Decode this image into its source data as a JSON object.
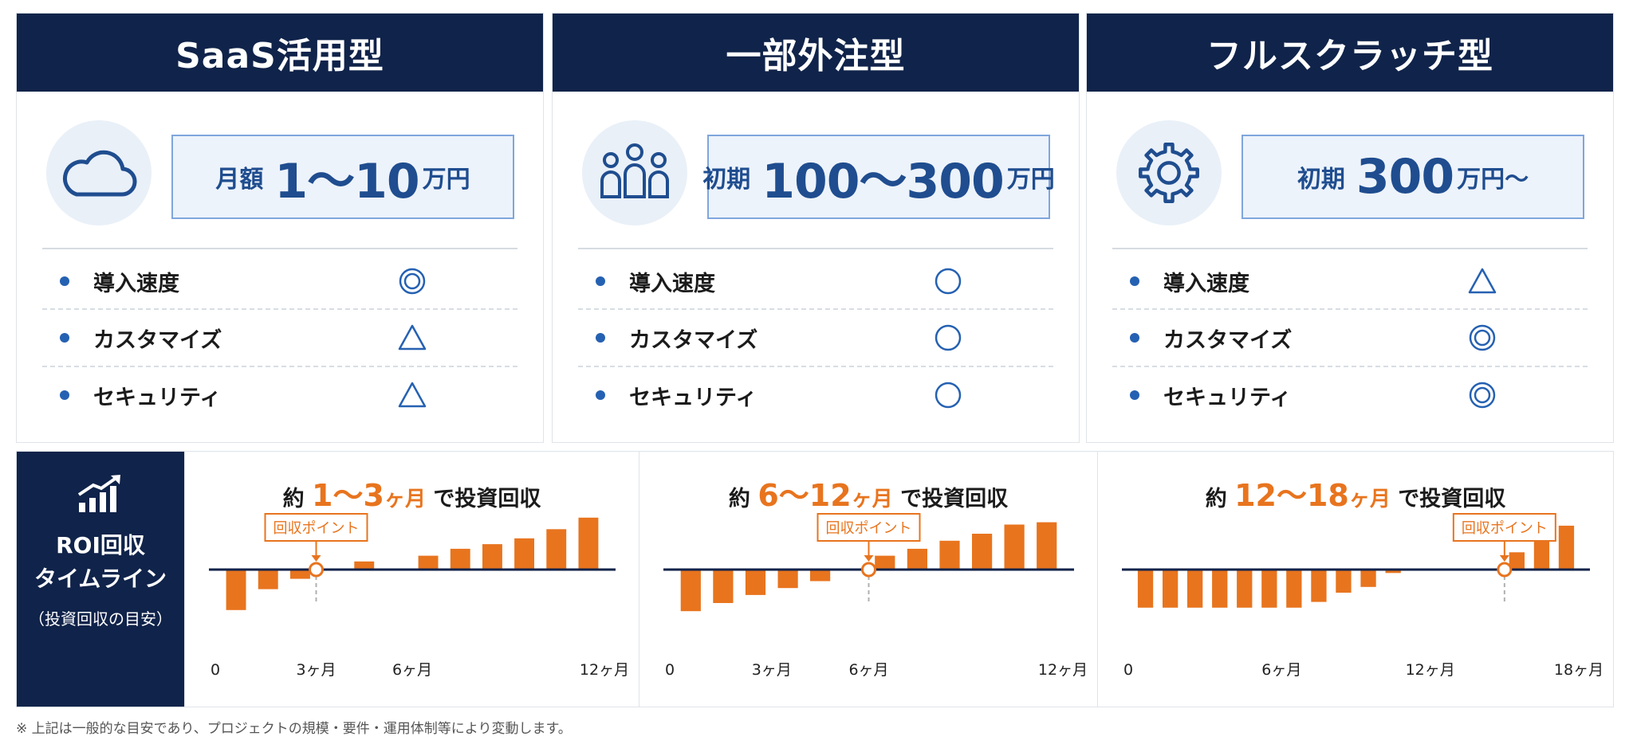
{
  "colors": {
    "navy": "#10234a",
    "blue": "#2561b2",
    "orange": "#e8741e",
    "light_blue_bg": "#e9f0f8"
  },
  "cards": [
    {
      "title": "SaaS活用型",
      "icon": "cloud-icon",
      "price": {
        "prefix": "月額",
        "number": "1～10",
        "suffix": "万円"
      },
      "features": [
        {
          "label": "導入速度",
          "rating": "◎"
        },
        {
          "label": "カスタマイズ",
          "rating": "△"
        },
        {
          "label": "セキュリティ",
          "rating": "△"
        }
      ]
    },
    {
      "title": "一部外注型",
      "icon": "people-icon",
      "price": {
        "prefix": "初期",
        "number": "100～300",
        "suffix": "万円"
      },
      "features": [
        {
          "label": "導入速度",
          "rating": "○"
        },
        {
          "label": "カスタマイズ",
          "rating": "○"
        },
        {
          "label": "セキュリティ",
          "rating": "○"
        }
      ]
    },
    {
      "title": "フルスクラッチ型",
      "icon": "gear-icon",
      "price": {
        "prefix": "初期",
        "number": "300",
        "suffix": "万円～"
      },
      "features": [
        {
          "label": "導入速度",
          "rating": "△"
        },
        {
          "label": "カスタマイズ",
          "rating": "◎"
        },
        {
          "label": "セキュリティ",
          "rating": "◎"
        }
      ]
    }
  ],
  "roi": {
    "heading_line1": "ROI回収",
    "heading_line2": "タイムライン",
    "heading_note": "（投資回収の目安）",
    "callout_label": "回収ポイント"
  },
  "chart_data": [
    {
      "type": "bar",
      "title_parts": {
        "pre": "約",
        "range": "1～3",
        "unit": "ヶ月",
        "post": "で投資回収"
      },
      "months": [
        1,
        2,
        3,
        4,
        5,
        6,
        7,
        8,
        9,
        10,
        11,
        12
      ],
      "values": [
        -3.5,
        -1.7,
        -0.8,
        0,
        0.7,
        0,
        1.2,
        1.8,
        2.2,
        2.7,
        3.5,
        4.5
      ],
      "payback_month": 3,
      "x_ticks": [
        "0",
        "3ヶ月",
        "6ヶ月",
        "12ヶ月"
      ],
      "x_tick_months": [
        0,
        3,
        6,
        12
      ],
      "ylim": [
        -4.5,
        6
      ]
    },
    {
      "type": "bar",
      "title_parts": {
        "pre": "約",
        "range": "6～12",
        "unit": "ヶ月",
        "post": "で投資回収"
      },
      "months": [
        1,
        2,
        3,
        4,
        5,
        6,
        7,
        8,
        9,
        10,
        11,
        12
      ],
      "values": [
        -3.6,
        -2.9,
        -2.2,
        -1.6,
        -1.0,
        0,
        1.2,
        1.8,
        2.5,
        3.1,
        3.9,
        4.1
      ],
      "payback_month": 6,
      "x_ticks": [
        "0",
        "3ヶ月",
        "6ヶ月",
        "12ヶ月"
      ],
      "x_tick_months": [
        0,
        3,
        6,
        12
      ],
      "ylim": [
        -4.5,
        6
      ]
    },
    {
      "type": "bar",
      "title_parts": {
        "pre": "約",
        "range": "12～18",
        "unit": "ヶ月",
        "post": "で投資回収"
      },
      "months": [
        1,
        2,
        3,
        4,
        5,
        6,
        7,
        8,
        9,
        10,
        11,
        12,
        13,
        14,
        15,
        16,
        17,
        18
      ],
      "values": [
        -3.3,
        -3.3,
        -3.3,
        -3.3,
        -3.3,
        -3.3,
        -3.3,
        -2.8,
        -2.0,
        -1.5,
        -0.3,
        0,
        0,
        0,
        0,
        1.5,
        2.5,
        3.8
      ],
      "payback_month": 15,
      "x_ticks": [
        "0",
        "6ヶ月",
        "12ヶ月",
        "18ヶ月"
      ],
      "x_tick_months": [
        0,
        6,
        12,
        18
      ],
      "ylim": [
        -4.5,
        6
      ]
    }
  ],
  "footnote": "※ 上記は一般的な目安であり、プロジェクトの規模・要件・運用体制等により変動します。"
}
